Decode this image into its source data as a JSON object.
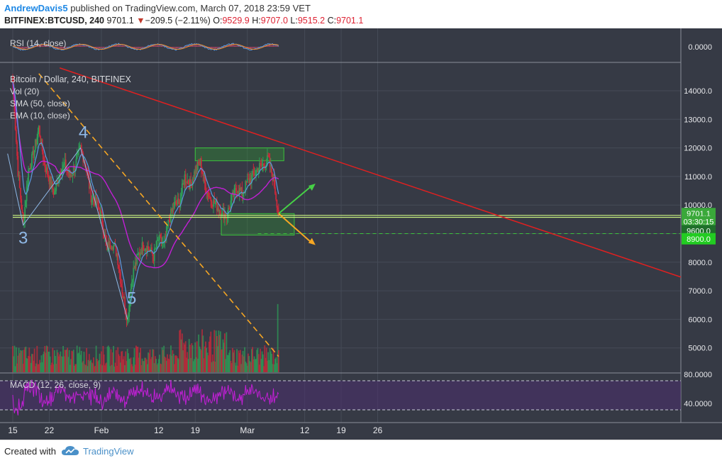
{
  "header": {
    "author": "AndrewDavis5",
    "published": " published on TradingView.com, March 07, 2018 23:59 VET",
    "symbol": "BITFINEX:BTCUSD, 240",
    "last": "9701.1",
    "change_arrow": "▼",
    "change": "−209.5 (−2.11%)",
    "o_label": "O:",
    "o_value": "9529.9",
    "h_label": "H:",
    "h_value": "9707.0",
    "l_label": "L:",
    "l_value": "9515.2",
    "c_label": "C:",
    "c_value": "9701.1"
  },
  "footer": {
    "created_with": "Created with",
    "brand": "TradingView"
  },
  "colors": {
    "background": "#363a45",
    "grid": "#454b57",
    "candle_up": "#2e9e57",
    "candle_down": "#c9293a",
    "trend_red": "#e02020",
    "trend_orange": "#f5a623",
    "sma": "#c21fd6",
    "ema": "#5a9ae0",
    "elliott": "#8fb8e6",
    "support": "#c8f080",
    "box": "#2e9e2e"
  },
  "chart_data": [
    {
      "type": "candlestick",
      "title": "Bitcoin / Dollar, 240, BITFINEX",
      "indicators": [
        "Vol (20)",
        "SMA (50, close)",
        "EMA (10, close)"
      ],
      "x_tick_labels": [
        "15",
        "22",
        "Feb",
        "12",
        "19",
        "Mar",
        "12",
        "19",
        "26"
      ],
      "y_tick_labels": [
        "14000.0",
        "13000.0",
        "12000.0",
        "11000.0",
        "10000.0",
        "9000.0",
        "8000.0",
        "7000.0",
        "6000.0",
        "5000.0"
      ],
      "ylim": [
        4700,
        14900
      ],
      "price_path": [
        {
          "date": "2018-01-15",
          "price": 14300
        },
        {
          "date": "2018-01-16",
          "price": 11200
        },
        {
          "date": "2018-01-17",
          "price": 9300
        },
        {
          "date": "2018-01-18",
          "price": 11200
        },
        {
          "date": "2018-01-19",
          "price": 11800
        },
        {
          "date": "2018-01-20",
          "price": 12700
        },
        {
          "date": "2018-01-21",
          "price": 11500
        },
        {
          "date": "2018-01-22",
          "price": 10900
        },
        {
          "date": "2018-01-23",
          "price": 10400
        },
        {
          "date": "2018-01-24",
          "price": 11200
        },
        {
          "date": "2018-01-25",
          "price": 11400
        },
        {
          "date": "2018-01-26",
          "price": 11000
        },
        {
          "date": "2018-01-27",
          "price": 11400
        },
        {
          "date": "2018-01-28",
          "price": 12000
        },
        {
          "date": "2018-01-29",
          "price": 11400
        },
        {
          "date": "2018-01-30",
          "price": 10300
        },
        {
          "date": "2018-01-31",
          "price": 10100
        },
        {
          "date": "2018-02-01",
          "price": 9600
        },
        {
          "date": "2018-02-02",
          "price": 8500
        },
        {
          "date": "2018-02-03",
          "price": 8700
        },
        {
          "date": "2018-02-04",
          "price": 8300
        },
        {
          "date": "2018-02-05",
          "price": 7000
        },
        {
          "date": "2018-02-06",
          "price": 6000
        },
        {
          "date": "2018-02-07",
          "price": 7600
        },
        {
          "date": "2018-02-08",
          "price": 8200
        },
        {
          "date": "2018-02-09",
          "price": 8600
        },
        {
          "date": "2018-02-10",
          "price": 8500
        },
        {
          "date": "2018-02-11",
          "price": 8200
        },
        {
          "date": "2018-02-12",
          "price": 8800
        },
        {
          "date": "2018-02-13",
          "price": 8600
        },
        {
          "date": "2018-02-14",
          "price": 9500
        },
        {
          "date": "2018-02-15",
          "price": 10000
        },
        {
          "date": "2018-02-16",
          "price": 10100
        },
        {
          "date": "2018-02-17",
          "price": 11000
        },
        {
          "date": "2018-02-18",
          "price": 10700
        },
        {
          "date": "2018-02-19",
          "price": 11200
        },
        {
          "date": "2018-02-20",
          "price": 11500
        },
        {
          "date": "2018-02-21",
          "price": 10600
        },
        {
          "date": "2018-02-22",
          "price": 10200
        },
        {
          "date": "2018-02-23",
          "price": 10000
        },
        {
          "date": "2018-02-24",
          "price": 9800
        },
        {
          "date": "2018-02-25",
          "price": 9600
        },
        {
          "date": "2018-02-26",
          "price": 10200
        },
        {
          "date": "2018-02-27",
          "price": 10600
        },
        {
          "date": "2018-02-28",
          "price": 10400
        },
        {
          "date": "2018-03-01",
          "price": 10800
        },
        {
          "date": "2018-03-02",
          "price": 11000
        },
        {
          "date": "2018-03-03",
          "price": 11300
        },
        {
          "date": "2018-03-04",
          "price": 11400
        },
        {
          "date": "2018-03-05",
          "price": 11600
        },
        {
          "date": "2018-03-06",
          "price": 10900
        },
        {
          "date": "2018-03-07",
          "price": 9700
        }
      ],
      "elliott_wave_labels": [
        {
          "label": "3",
          "date": "2018-01-17",
          "price": 9300
        },
        {
          "label": "4",
          "date": "2018-01-28",
          "price": 12000
        },
        {
          "label": "5",
          "date": "2018-02-06",
          "price": 6000
        }
      ],
      "horizontal_levels": [
        "9600.0",
        "8900.0"
      ],
      "last_price_label": "9701.1",
      "countdown_label": "03:30:15"
    },
    {
      "type": "line",
      "title": "MACD (12, 26, close, 9)",
      "y_tick_labels": [
        "0.0000"
      ]
    },
    {
      "type": "line",
      "title": "RSI (14, close)",
      "y_tick_labels": [
        "80.0000",
        "40.0000"
      ],
      "bands": [
        70,
        30
      ]
    }
  ]
}
